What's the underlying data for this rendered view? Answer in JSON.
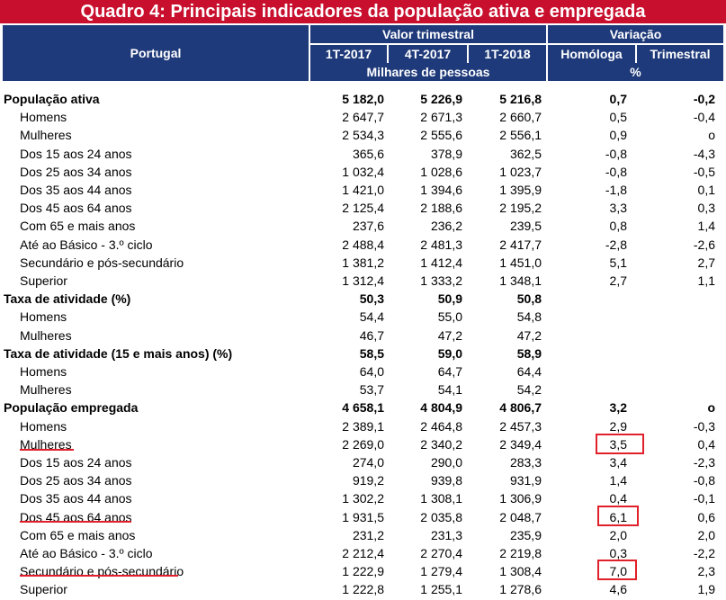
{
  "title": "Quadro 4: Principais indicadores da população ativa e empregada",
  "header": {
    "portugal": "Portugal",
    "valor_trimestral": "Valor trimestral",
    "variacao": "Variação",
    "periods": [
      "1T-2017",
      "4T-2017",
      "1T-2018"
    ],
    "var_cols": [
      "Homóloga",
      "Trimestral"
    ],
    "unit_values": "Milhares de pessoas",
    "unit_var": "%"
  },
  "rows": [
    {
      "label": "População ativa",
      "bold": true,
      "values": [
        "5 182,0",
        "5 226,9",
        "5 216,8",
        "0,7",
        "-0,2"
      ]
    },
    {
      "label": "Homens",
      "bold": false,
      "values": [
        "2 647,7",
        "2 671,3",
        "2 660,7",
        "0,5",
        "-0,4"
      ]
    },
    {
      "label": "Mulheres",
      "bold": false,
      "values": [
        "2 534,3",
        "2 555,6",
        "2 556,1",
        "0,9",
        "o"
      ]
    },
    {
      "label": "Dos 15 aos 24 anos",
      "bold": false,
      "values": [
        "365,6",
        "378,9",
        "362,5",
        "-0,8",
        "-4,3"
      ]
    },
    {
      "label": "Dos 25 aos 34 anos",
      "bold": false,
      "values": [
        "1 032,4",
        "1 028,6",
        "1 023,7",
        "-0,8",
        "-0,5"
      ]
    },
    {
      "label": "Dos 35 aos 44 anos",
      "bold": false,
      "values": [
        "1 421,0",
        "1 394,6",
        "1 395,9",
        "-1,8",
        "0,1"
      ]
    },
    {
      "label": "Dos 45 aos 64 anos",
      "bold": false,
      "values": [
        "2 125,4",
        "2 188,6",
        "2 195,2",
        "3,3",
        "0,3"
      ]
    },
    {
      "label": "Com 65 e mais anos",
      "bold": false,
      "values": [
        "237,6",
        "236,2",
        "239,5",
        "0,8",
        "1,4"
      ]
    },
    {
      "label": "Até ao Básico - 3.º ciclo",
      "bold": false,
      "values": [
        "2 488,4",
        "2 481,3",
        "2 417,7",
        "-2,8",
        "-2,6"
      ]
    },
    {
      "label": "Secundário e pós-secundário",
      "bold": false,
      "values": [
        "1 381,2",
        "1 412,4",
        "1 451,0",
        "5,1",
        "2,7"
      ]
    },
    {
      "label": "Superior",
      "bold": false,
      "values": [
        "1 312,4",
        "1 333,2",
        "1 348,1",
        "2,7",
        "1,1"
      ]
    },
    {
      "label": "Taxa de atividade (%)",
      "bold": true,
      "values": [
        "50,3",
        "50,9",
        "50,8",
        "",
        ""
      ]
    },
    {
      "label": "Homens",
      "bold": false,
      "values": [
        "54,4",
        "55,0",
        "54,8",
        "",
        ""
      ]
    },
    {
      "label": "Mulheres",
      "bold": false,
      "values": [
        "46,7",
        "47,2",
        "47,2",
        "",
        ""
      ]
    },
    {
      "label": "Taxa de atividade (15 e mais anos) (%)",
      "bold": true,
      "values": [
        "58,5",
        "59,0",
        "58,9",
        "",
        ""
      ]
    },
    {
      "label": "Homens",
      "bold": false,
      "values": [
        "64,0",
        "64,7",
        "64,4",
        "",
        ""
      ]
    },
    {
      "label": "Mulheres",
      "bold": false,
      "values": [
        "53,7",
        "54,1",
        "54,2",
        "",
        ""
      ]
    },
    {
      "label": "População empregada",
      "bold": true,
      "values": [
        "4 658,1",
        "4 804,9",
        "4 806,7",
        "3,2",
        "o"
      ]
    },
    {
      "label": "Homens",
      "bold": false,
      "values": [
        "2 389,1",
        "2 464,8",
        "2 457,3",
        "2,9",
        "-0,3"
      ]
    },
    {
      "label": "Mulheres",
      "bold": false,
      "values": [
        "2 269,0",
        "2 340,2",
        "2 349,4",
        "3,5",
        "0,4"
      ]
    },
    {
      "label": "Dos 15 aos 24 anos",
      "bold": false,
      "values": [
        "274,0",
        "290,0",
        "283,3",
        "3,4",
        "-2,3"
      ]
    },
    {
      "label": "Dos 25 aos 34 anos",
      "bold": false,
      "values": [
        "919,2",
        "939,8",
        "931,9",
        "1,4",
        "-0,8"
      ]
    },
    {
      "label": "Dos 35 aos 44 anos",
      "bold": false,
      "values": [
        "1 302,2",
        "1 308,1",
        "1 306,9",
        "0,4",
        "-0,1"
      ]
    },
    {
      "label": "Dos 45 aos 64 anos",
      "bold": false,
      "values": [
        "1 931,5",
        "2 035,8",
        "2 048,7",
        "6,1",
        "0,6"
      ]
    },
    {
      "label": "Com 65 e mais anos",
      "bold": false,
      "values": [
        "231,2",
        "231,3",
        "235,9",
        "2,0",
        "2,0"
      ]
    },
    {
      "label": "Até ao Básico - 3.º ciclo",
      "bold": false,
      "values": [
        "2 212,4",
        "2 270,4",
        "2 219,8",
        "0,3",
        "-2,2"
      ]
    },
    {
      "label": "Secundário e pós-secundário",
      "bold": false,
      "values": [
        "1 222,9",
        "1 279,4",
        "1 308,4",
        "7,0",
        "2,3"
      ]
    },
    {
      "label": "Superior",
      "bold": false,
      "values": [
        "1 222,8",
        "1 255,1",
        "1 278,6",
        "4,6",
        "1,9"
      ]
    }
  ],
  "highlight_color": "#e0202a"
}
